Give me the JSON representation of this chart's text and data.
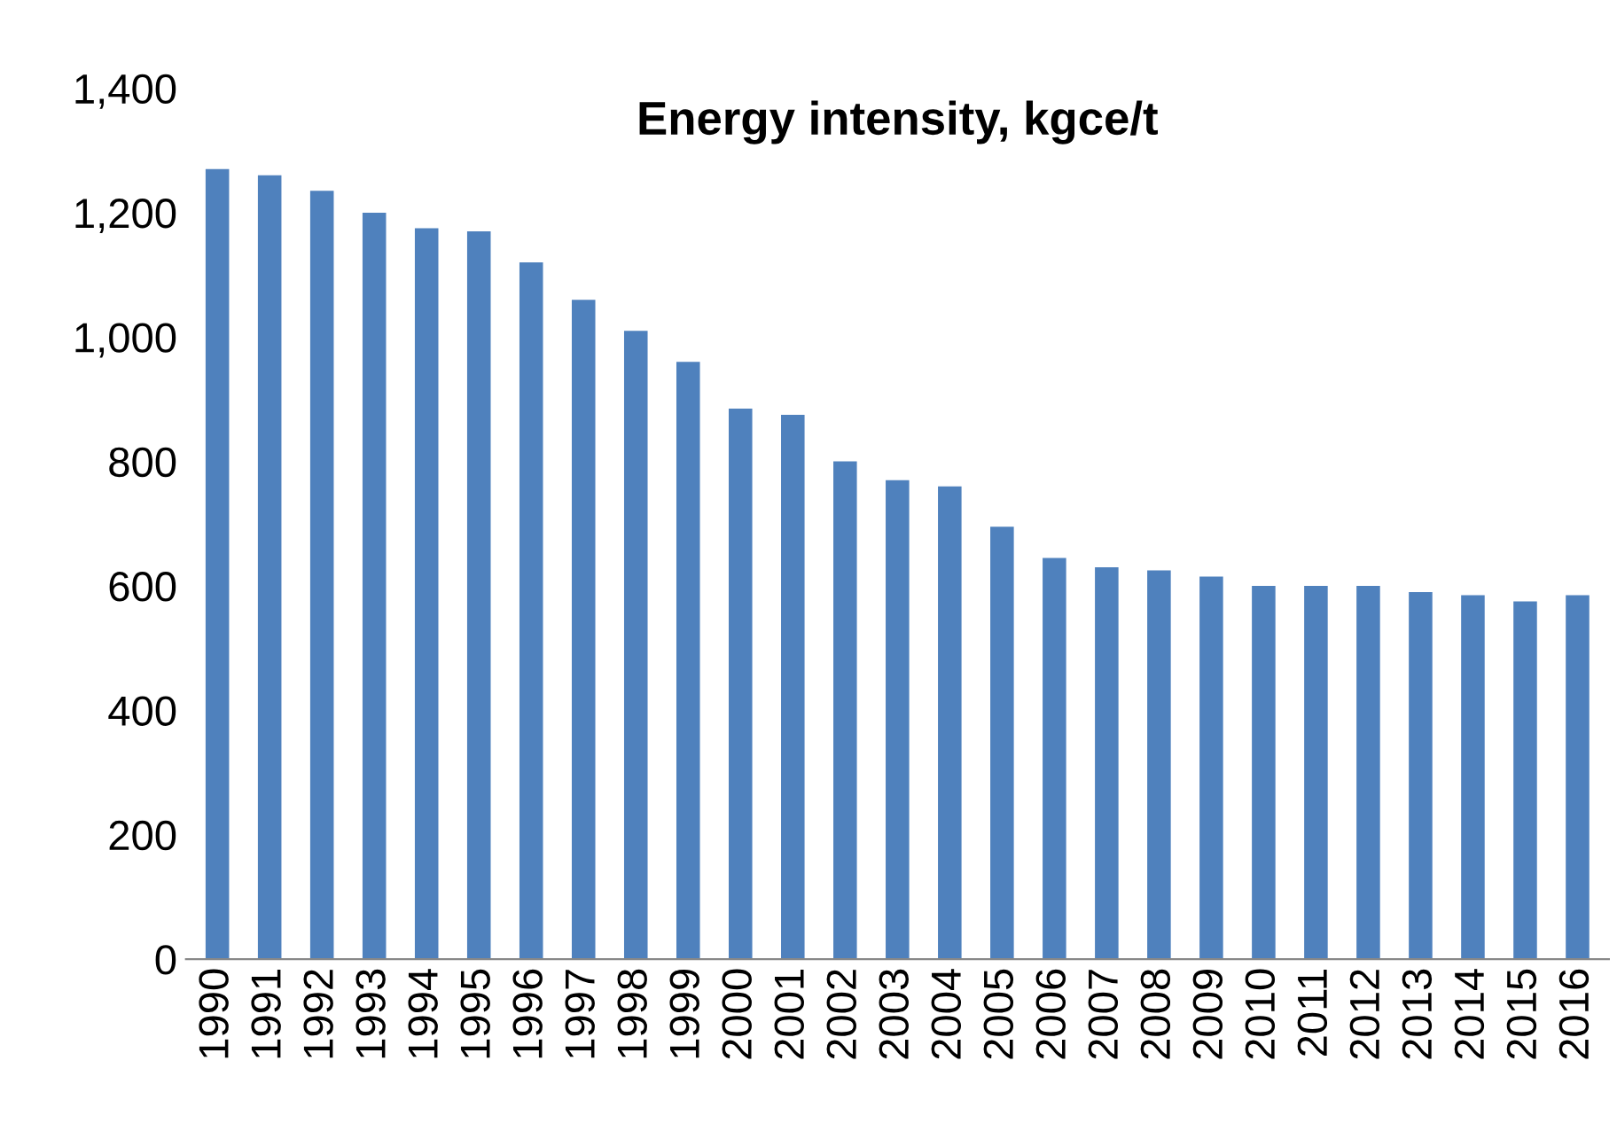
{
  "chart_data": {
    "type": "bar",
    "title": "Energy intensity, kgce/t",
    "categories": [
      "1990",
      "1991",
      "1992",
      "1993",
      "1994",
      "1995",
      "1996",
      "1997",
      "1998",
      "1999",
      "2000",
      "2001",
      "2002",
      "2003",
      "2004",
      "2005",
      "2006",
      "2007",
      "2008",
      "2009",
      "2010",
      "2011",
      "2012",
      "2013",
      "2014",
      "2015",
      "2016"
    ],
    "values": [
      1270,
      1260,
      1235,
      1200,
      1175,
      1170,
      1120,
      1060,
      1010,
      960,
      885,
      875,
      800,
      770,
      760,
      695,
      645,
      630,
      625,
      615,
      600,
      600,
      600,
      590,
      585,
      575,
      585
    ],
    "color": "#4f81bd",
    "ylim": [
      0,
      1400
    ],
    "yticks": [
      {
        "value": 0,
        "label": "0"
      },
      {
        "value": 200,
        "label": "200"
      },
      {
        "value": 400,
        "label": "400"
      },
      {
        "value": 600,
        "label": "600"
      },
      {
        "value": 800,
        "label": "800"
      },
      {
        "value": 1000,
        "label": "1,000"
      },
      {
        "value": 1200,
        "label": "1,200"
      },
      {
        "value": 1400,
        "label": "1,400"
      }
    ],
    "grid": false
  }
}
